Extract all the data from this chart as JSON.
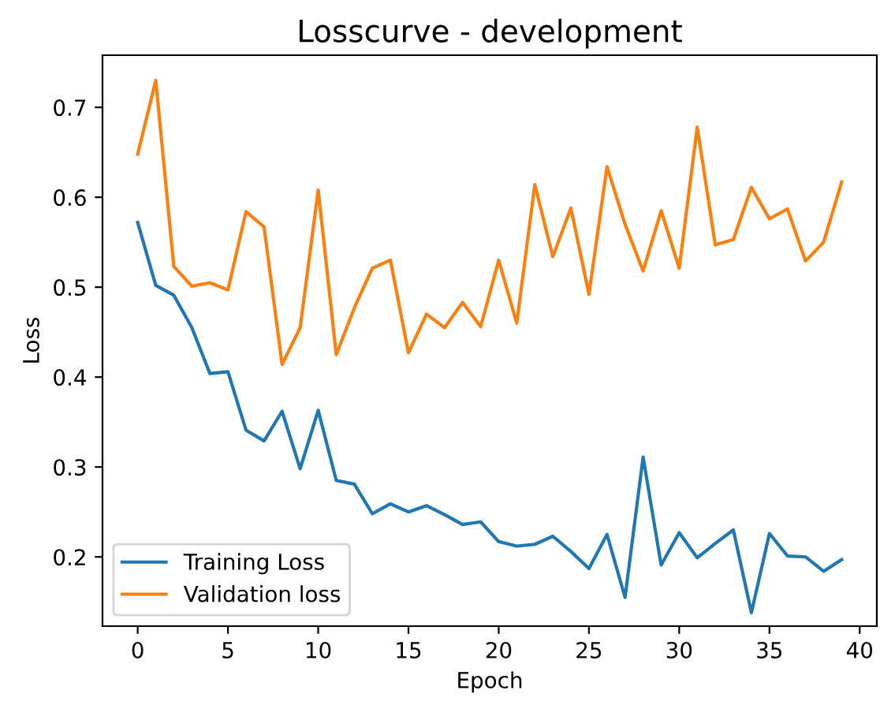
{
  "chart_data": {
    "type": "line",
    "title": "Losscurve - development",
    "xlabel": "Epoch",
    "ylabel": "Loss",
    "x": [
      0,
      1,
      2,
      3,
      4,
      5,
      6,
      7,
      8,
      9,
      10,
      11,
      12,
      13,
      14,
      15,
      16,
      17,
      18,
      19,
      20,
      21,
      22,
      23,
      24,
      25,
      26,
      27,
      28,
      29,
      30,
      31,
      32,
      33,
      34,
      35,
      36,
      37,
      38,
      39
    ],
    "series": [
      {
        "name": "Training Loss",
        "color": "#1f77b4",
        "values": [
          0.572,
          0.502,
          0.491,
          0.455,
          0.404,
          0.406,
          0.341,
          0.329,
          0.362,
          0.298,
          0.363,
          0.285,
          0.281,
          0.248,
          0.259,
          0.25,
          0.257,
          0.247,
          0.236,
          0.239,
          0.217,
          0.212,
          0.214,
          0.223,
          0.206,
          0.187,
          0.225,
          0.155,
          0.311,
          0.191,
          0.227,
          0.199,
          0.215,
          0.23,
          0.138,
          0.226,
          0.201,
          0.2,
          0.184,
          0.197
        ]
      },
      {
        "name": "Validation loss",
        "color": "#ff7f0e",
        "values": [
          0.648,
          0.73,
          0.523,
          0.501,
          0.505,
          0.497,
          0.584,
          0.567,
          0.414,
          0.455,
          0.608,
          0.425,
          0.477,
          0.521,
          0.53,
          0.427,
          0.47,
          0.455,
          0.483,
          0.456,
          0.53,
          0.46,
          0.614,
          0.534,
          0.588,
          0.492,
          0.634,
          0.57,
          0.518,
          0.585,
          0.521,
          0.678,
          0.547,
          0.553,
          0.611,
          0.576,
          0.587,
          0.529,
          0.55,
          0.617
        ]
      }
    ],
    "xlim": [
      -1.95,
      40.95
    ],
    "ylim": [
      0.123,
      0.758
    ],
    "xticks": [
      0,
      5,
      10,
      15,
      20,
      25,
      30,
      35,
      40
    ],
    "yticks": [
      0.2,
      0.3,
      0.4,
      0.5,
      0.6,
      0.7
    ],
    "grid": false,
    "legend": "bottom left",
    "marker": "none",
    "line_style": "solid"
  }
}
